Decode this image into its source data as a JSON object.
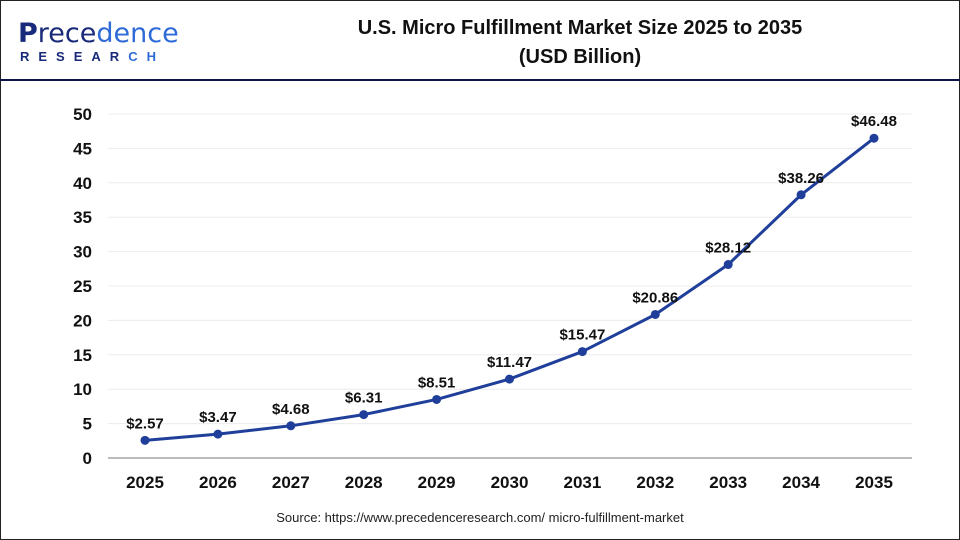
{
  "logo": {
    "line1_a": "P",
    "line1_b": "rece",
    "line1_c": "dence",
    "line2_a": "RESEAR",
    "line2_b": "CH"
  },
  "title": {
    "line1": "U.S. Micro Fulfillment Market Size 2025 to 2035",
    "line2": "(USD Billion)"
  },
  "source": "Source: https://www.precedenceresearch.com/ micro-fulfillment-market",
  "chart_data": {
    "type": "line",
    "title": "U.S. Micro Fulfillment Market Size 2025 to 2035 (USD Billion)",
    "categories": [
      "2025",
      "2026",
      "2027",
      "2028",
      "2029",
      "2030",
      "2031",
      "2032",
      "2033",
      "2034",
      "2035"
    ],
    "values": [
      2.57,
      3.47,
      4.68,
      6.31,
      8.51,
      11.47,
      15.47,
      20.86,
      28.12,
      38.26,
      46.48
    ],
    "labels": [
      "$2.57",
      "$3.47",
      "$4.68",
      "$6.31",
      "$8.51",
      "$11.47",
      "$15.47",
      "$20.86",
      "$28.12",
      "$38.26",
      "$46.48"
    ],
    "yticks": [
      "0",
      "5",
      "10",
      "15",
      "20",
      "25",
      "30",
      "35",
      "40",
      "45",
      "50"
    ],
    "ylim": [
      0,
      50
    ],
    "grid": true,
    "line_color": "#1f3f9a"
  }
}
